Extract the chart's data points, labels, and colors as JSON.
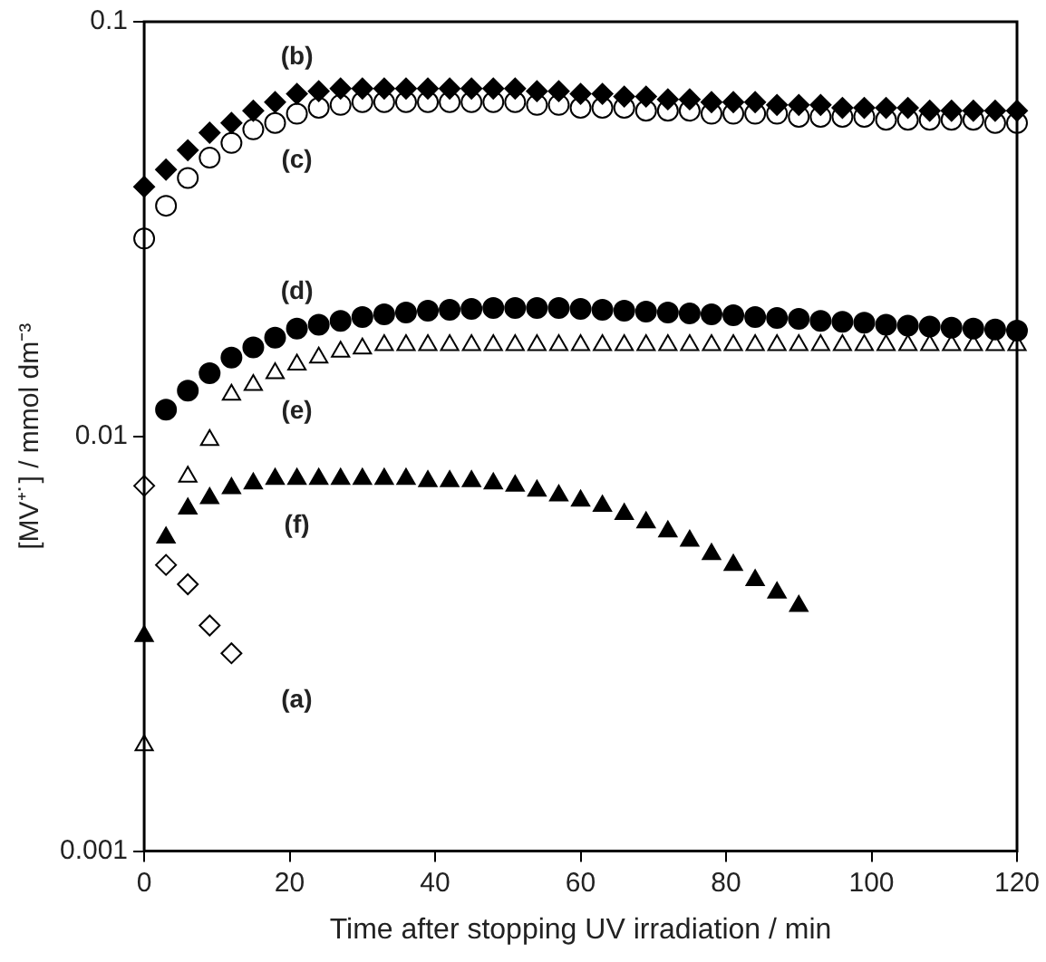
{
  "chart_data": {
    "type": "scatter",
    "xlabel": "Time after stopping UV irradiation / min",
    "ylabel": "[MV⁺˙] / mmol dm⁻³",
    "log": "y",
    "xlim": [
      0,
      120
    ],
    "xticks": [
      0,
      20,
      40,
      60,
      80,
      100,
      120
    ],
    "ylim": [
      0.001,
      0.1
    ],
    "yticks": [
      0.001,
      0.01,
      0.1
    ],
    "grid": false,
    "legend": false,
    "series": [
      {
        "name": "(a)",
        "marker": "diamond",
        "color": "#ffffff",
        "x": [
          0,
          3,
          6,
          9,
          12
        ],
        "values": [
          0.0076,
          0.0049,
          0.0044,
          0.0035,
          0.003
        ]
      },
      {
        "name": "(b)",
        "marker": "diamond",
        "color": "#000000",
        "x": [
          0,
          3,
          6,
          9,
          12,
          15,
          18,
          21,
          24,
          27,
          30,
          33,
          36,
          39,
          42,
          45,
          48,
          51,
          54,
          57,
          60,
          63,
          66,
          69,
          72,
          75,
          78,
          81,
          84,
          87,
          90,
          93,
          96,
          99,
          102,
          105,
          108,
          111,
          114,
          117,
          120
        ],
        "values": [
          0.04,
          0.044,
          0.049,
          0.054,
          0.057,
          0.061,
          0.064,
          0.067,
          0.068,
          0.069,
          0.069,
          0.069,
          0.069,
          0.069,
          0.069,
          0.069,
          0.069,
          0.069,
          0.068,
          0.068,
          0.067,
          0.067,
          0.066,
          0.066,
          0.065,
          0.065,
          0.064,
          0.064,
          0.064,
          0.063,
          0.063,
          0.063,
          0.062,
          0.062,
          0.062,
          0.062,
          0.061,
          0.061,
          0.061,
          0.061,
          0.061
        ]
      },
      {
        "name": "(c)",
        "marker": "circle",
        "color": "#ffffff",
        "x": [
          0,
          3,
          6,
          9,
          12,
          15,
          18,
          21,
          24,
          27,
          30,
          33,
          36,
          39,
          42,
          45,
          48,
          51,
          54,
          57,
          60,
          63,
          66,
          69,
          72,
          75,
          78,
          81,
          84,
          87,
          90,
          93,
          96,
          99,
          102,
          105,
          108,
          111,
          114,
          117,
          120
        ],
        "values": [
          0.03,
          0.036,
          0.042,
          0.047,
          0.051,
          0.055,
          0.057,
          0.06,
          0.062,
          0.063,
          0.064,
          0.064,
          0.064,
          0.064,
          0.064,
          0.064,
          0.064,
          0.064,
          0.063,
          0.063,
          0.062,
          0.062,
          0.062,
          0.061,
          0.061,
          0.061,
          0.06,
          0.06,
          0.06,
          0.06,
          0.059,
          0.059,
          0.059,
          0.059,
          0.058,
          0.058,
          0.058,
          0.058,
          0.058,
          0.057,
          0.057
        ]
      },
      {
        "name": "(d)",
        "marker": "circle",
        "color": "#000000",
        "x": [
          3,
          6,
          9,
          12,
          15,
          18,
          21,
          24,
          27,
          30,
          33,
          36,
          39,
          42,
          45,
          48,
          51,
          54,
          57,
          60,
          63,
          66,
          69,
          72,
          75,
          78,
          81,
          84,
          87,
          90,
          93,
          96,
          99,
          102,
          105,
          108,
          111,
          114,
          117,
          120
        ],
        "values": [
          0.0116,
          0.0129,
          0.0142,
          0.0155,
          0.0164,
          0.0173,
          0.0182,
          0.0186,
          0.019,
          0.0194,
          0.0197,
          0.0199,
          0.0201,
          0.0202,
          0.0203,
          0.0204,
          0.0204,
          0.0204,
          0.0204,
          0.0203,
          0.0202,
          0.0201,
          0.02,
          0.0199,
          0.0198,
          0.0197,
          0.0196,
          0.0194,
          0.0193,
          0.0192,
          0.019,
          0.0189,
          0.0188,
          0.0186,
          0.0185,
          0.0184,
          0.0183,
          0.0182,
          0.0181,
          0.018
        ]
      },
      {
        "name": "(e)",
        "marker": "triangle",
        "color": "#ffffff",
        "x": [
          0,
          6,
          9,
          12,
          15,
          18,
          21,
          24,
          27,
          30,
          33,
          36,
          39,
          42,
          45,
          48,
          51,
          54,
          57,
          60,
          63,
          66,
          69,
          72,
          75,
          78,
          81,
          84,
          87,
          90,
          93,
          96,
          99,
          102,
          105,
          108,
          111,
          114,
          117,
          120
        ],
        "values": [
          0.0018,
          0.008,
          0.0098,
          0.0126,
          0.0133,
          0.0142,
          0.0149,
          0.0155,
          0.016,
          0.0163,
          0.0166,
          0.0166,
          0.0166,
          0.0166,
          0.0166,
          0.0166,
          0.0166,
          0.0166,
          0.0166,
          0.0166,
          0.0166,
          0.0166,
          0.0166,
          0.0166,
          0.0166,
          0.0166,
          0.0166,
          0.0166,
          0.0166,
          0.0166,
          0.0166,
          0.0166,
          0.0166,
          0.0166,
          0.0166,
          0.0166,
          0.0166,
          0.0166,
          0.0166,
          0.0166
        ]
      },
      {
        "name": "(f)",
        "marker": "triangle",
        "color": "#000000",
        "x": [
          0,
          3,
          6,
          9,
          12,
          15,
          18,
          21,
          24,
          27,
          30,
          33,
          36,
          39,
          42,
          45,
          48,
          51,
          54,
          57,
          60,
          63,
          66,
          69,
          72,
          75,
          78,
          81,
          84,
          87,
          90
        ],
        "values": [
          0.0033,
          0.0057,
          0.0067,
          0.0071,
          0.0075,
          0.0077,
          0.0079,
          0.0079,
          0.0079,
          0.0079,
          0.0079,
          0.0079,
          0.0079,
          0.0078,
          0.0078,
          0.0078,
          0.0077,
          0.0076,
          0.0074,
          0.0072,
          0.007,
          0.0068,
          0.0065,
          0.0062,
          0.0059,
          0.0056,
          0.0052,
          0.0049,
          0.0045,
          0.0042,
          0.0039
        ]
      }
    ]
  }
}
